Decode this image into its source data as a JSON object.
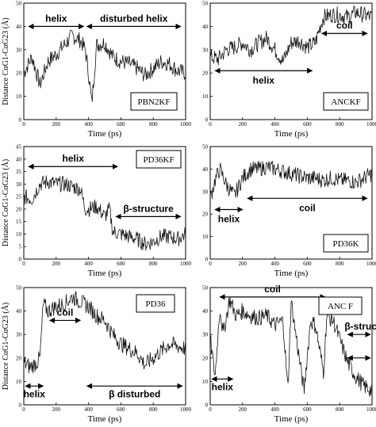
{
  "chart_data": [
    {
      "type": "line",
      "panel_label": "PBN2KF",
      "ylabel": "Distance CαG1-CαG23 (Å)",
      "xlabel": "Time (ps)",
      "xlim": [
        0,
        1000
      ],
      "ylim": [
        0,
        50
      ],
      "xticks": [
        0,
        200,
        400,
        600,
        800,
        1000
      ],
      "yticks": [
        0,
        10,
        20,
        30,
        40,
        50
      ],
      "annotations": [
        {
          "text": "helix",
          "x_start": 20,
          "x_end": 380,
          "y": 40
        },
        {
          "text": "disturbed helix",
          "x_start": 380,
          "x_end": 980,
          "y": 40
        }
      ],
      "x": [
        0,
        50,
        100,
        150,
        200,
        250,
        300,
        350,
        380,
        400,
        420,
        450,
        500,
        550,
        600,
        650,
        700,
        750,
        800,
        850,
        900,
        950,
        1000
      ],
      "values": [
        20,
        27,
        15,
        25,
        28,
        32,
        36,
        34,
        30,
        20,
        7,
        32,
        33,
        27,
        25,
        24,
        22,
        19,
        22,
        25,
        24,
        21,
        20
      ]
    },
    {
      "type": "line",
      "panel_label": "ANCKF",
      "ylabel": "",
      "xlabel": "Time (ps)",
      "xlim": [
        0,
        1000
      ],
      "ylim": [
        0,
        50
      ],
      "xticks": [
        0,
        200,
        400,
        600,
        800,
        1000
      ],
      "yticks": [
        0,
        10,
        20,
        30,
        40,
        50
      ],
      "annotations": [
        {
          "text": "helix",
          "x_start": 20,
          "x_end": 640,
          "y": 21
        },
        {
          "text": "coil",
          "x_start": 680,
          "x_end": 980,
          "y": 37
        }
      ],
      "x": [
        0,
        50,
        100,
        150,
        200,
        250,
        300,
        350,
        400,
        450,
        500,
        550,
        600,
        650,
        680,
        700,
        750,
        800,
        850,
        900,
        950,
        1000
      ],
      "values": [
        27,
        26,
        30,
        31,
        33,
        30,
        33,
        35,
        30,
        25,
        33,
        34,
        31,
        33,
        40,
        44,
        45,
        45,
        44,
        46,
        45,
        44
      ]
    },
    {
      "type": "line",
      "panel_label": "PD36KF",
      "ylabel": "Distance CαG1-CαG23 (Å)",
      "xlabel": "Time (ps)",
      "xlim": [
        0,
        1000
      ],
      "ylim": [
        0,
        45
      ],
      "xticks": [
        0,
        200,
        400,
        600,
        800,
        1000
      ],
      "yticks": [
        0,
        5,
        10,
        15,
        20,
        25,
        30,
        35,
        40,
        45
      ],
      "annotations": [
        {
          "text": "helix",
          "x_start": 20,
          "x_end": 590,
          "y": 37
        },
        {
          "text": "β-structure",
          "x_start": 560,
          "x_end": 980,
          "y": 17
        }
      ],
      "x": [
        0,
        50,
        100,
        150,
        200,
        250,
        300,
        350,
        380,
        400,
        450,
        500,
        530,
        550,
        600,
        650,
        700,
        750,
        800,
        850,
        900,
        950,
        1000
      ],
      "values": [
        25,
        24,
        30,
        31,
        30,
        30,
        29,
        28,
        20,
        20,
        21,
        17,
        20,
        11,
        10,
        9,
        8,
        6,
        7,
        9,
        9,
        8,
        10
      ]
    },
    {
      "type": "line",
      "panel_label": "PD36K",
      "ylabel": "",
      "xlabel": "Time (ps)",
      "xlim": [
        0,
        1000
      ],
      "ylim": [
        0,
        50
      ],
      "xticks": [
        0,
        200,
        400,
        600,
        800,
        1000
      ],
      "yticks": [
        0,
        10,
        20,
        30,
        40,
        50
      ],
      "annotations": [
        {
          "text": "helix",
          "x_start": 20,
          "x_end": 210,
          "y": 22
        },
        {
          "text": "coil",
          "x_start": 220,
          "x_end": 980,
          "y": 27
        }
      ],
      "x": [
        0,
        30,
        60,
        100,
        150,
        200,
        250,
        300,
        350,
        400,
        450,
        500,
        550,
        600,
        650,
        700,
        750,
        800,
        850,
        900,
        950,
        1000
      ],
      "values": [
        27,
        35,
        40,
        33,
        28,
        36,
        40,
        40,
        41,
        40,
        39,
        38,
        37,
        36,
        36,
        35,
        36,
        35,
        35,
        34,
        36,
        38
      ]
    },
    {
      "type": "line",
      "panel_label": "PD36",
      "ylabel": "Distance CαG1-CαG23 (Å)",
      "xlabel": "Time (ps)",
      "xlim": [
        0,
        1000
      ],
      "ylim": [
        0,
        50
      ],
      "xticks": [
        0,
        200,
        400,
        600,
        800,
        1000
      ],
      "yticks": [
        0,
        10,
        20,
        30,
        40,
        50
      ],
      "annotations": [
        {
          "text": "helix",
          "x_start": 0,
          "x_end": 130,
          "y": 8
        },
        {
          "text": "coil",
          "x_start": 150,
          "x_end": 360,
          "y": 36
        },
        {
          "text": "β disturbed",
          "x_start": 380,
          "x_end": 990,
          "y": 8
        }
      ],
      "x": [
        0,
        40,
        80,
        100,
        120,
        150,
        200,
        250,
        300,
        350,
        400,
        450,
        500,
        550,
        600,
        650,
        700,
        750,
        800,
        850,
        900,
        950,
        1000
      ],
      "values": [
        18,
        16,
        18,
        20,
        43,
        40,
        42,
        43,
        46,
        44,
        42,
        38,
        36,
        30,
        26,
        24,
        22,
        17,
        20,
        23,
        26,
        25,
        24
      ]
    },
    {
      "type": "line",
      "panel_label": "ANC F",
      "ylabel": "",
      "xlabel": "Time (ps)",
      "xlim": [
        0,
        1000
      ],
      "ylim": [
        0,
        50
      ],
      "xticks": [
        0,
        200,
        400,
        600,
        800,
        1000
      ],
      "yticks": [
        0,
        10,
        20,
        30,
        40,
        50
      ],
      "annotations": [
        {
          "text": "helix",
          "x_start": 0,
          "x_end": 150,
          "y": 11
        },
        {
          "text": "coil",
          "x_start": 50,
          "x_end": 720,
          "y": 46
        },
        {
          "text": "β-structure",
          "x_start": 840,
          "x_end": 1000,
          "y": 30
        },
        {
          "text": "",
          "x_start": 840,
          "x_end": 1000,
          "y": 20
        }
      ],
      "x": [
        0,
        30,
        60,
        80,
        120,
        160,
        200,
        250,
        300,
        350,
        400,
        450,
        480,
        500,
        550,
        580,
        620,
        650,
        700,
        720,
        760,
        800,
        850,
        900,
        950,
        1000
      ],
      "values": [
        28,
        12,
        42,
        30,
        45,
        38,
        40,
        38,
        37,
        38,
        34,
        36,
        6,
        44,
        20,
        6,
        36,
        34,
        14,
        38,
        36,
        28,
        18,
        12,
        8,
        6
      ]
    }
  ]
}
